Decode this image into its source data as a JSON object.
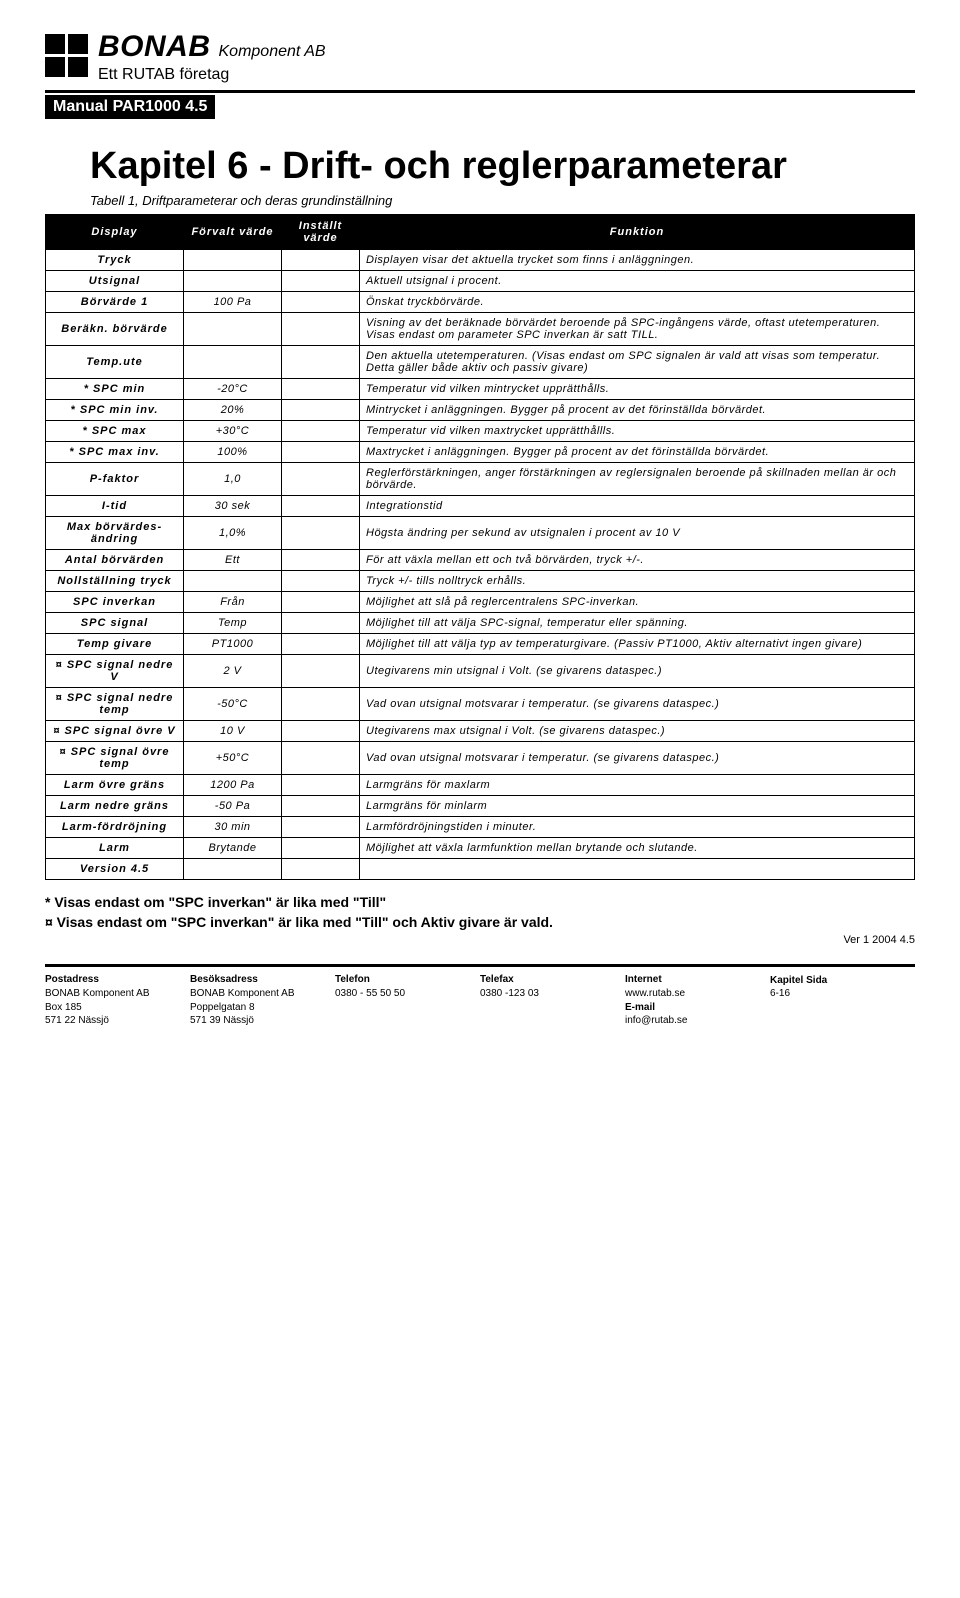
{
  "header": {
    "company_name": "BONAB",
    "company_suffix": "Komponent AB",
    "company_sub": "Ett RUTAB företag",
    "manual_bar": "Manual PAR1000 4.5"
  },
  "chapter": {
    "title": "Kapitel 6 - Drift- och reglerparameterar",
    "caption": "Tabell 1, Driftparameterar och deras grundinställning"
  },
  "table": {
    "headers": [
      "Display",
      "Förvalt värde",
      "Inställt värde",
      "Funktion"
    ],
    "rows": [
      {
        "c1": "Tryck",
        "c2": "",
        "c4": "Displayen visar det aktuella trycket som finns i anläggningen."
      },
      {
        "c1": "Utsignal",
        "c2": "",
        "c4": "Aktuell utsignal i procent."
      },
      {
        "c1": "Börvärde 1",
        "c2": "100 Pa",
        "c4": "Önskat tryckbörvärde."
      },
      {
        "c1": "Beräkn. börvärde",
        "c2": "",
        "c4": "Visning av det beräknade börvärdet beroende på SPC-ingångens värde, oftast utetemperaturen. Visas endast om parameter SPC inverkan är satt TILL."
      },
      {
        "c1": "Temp.ute",
        "c2": "",
        "c4": "Den aktuella utetemperaturen. (Visas endast om SPC signalen är vald att visas som temperatur. Detta gäller både aktiv och passiv givare)"
      },
      {
        "c1": "* SPC min",
        "c2": "-20°C",
        "c4": "Temperatur vid vilken mintrycket upprätthålls."
      },
      {
        "c1": "* SPC min inv.",
        "c2": "20%",
        "c4": "Mintrycket i anläggningen. Bygger på procent av det förinställda börvärdet."
      },
      {
        "c1": "* SPC max",
        "c2": "+30°C",
        "c4": "Temperatur vid vilken maxtrycket upprätthållls."
      },
      {
        "c1": "* SPC max inv.",
        "c2": "100%",
        "c4": "Maxtrycket i anläggningen. Bygger på procent av det förinställda börvärdet."
      },
      {
        "c1": "P-faktor",
        "c2": "1,0",
        "c4": "Reglerförstärkningen, anger förstärkningen av reglersignalen beroende på skillnaden mellan är och börvärde."
      },
      {
        "c1": "I-tid",
        "c2": "30 sek",
        "c4": "Integrationstid"
      },
      {
        "c1": "Max börvärdes-ändring",
        "c2": "1,0%",
        "c4": "Högsta ändring per sekund av utsignalen i procent av 10 V"
      },
      {
        "c1": "Antal börvärden",
        "c2": "Ett",
        "c4": "För att växla mellan ett och två börvärden, tryck +/-."
      },
      {
        "c1": "Nollställning tryck",
        "c2": "",
        "c4": "Tryck +/- tills nolltryck erhålls."
      },
      {
        "c1": "SPC inverkan",
        "c2": "Från",
        "c4": "Möjlighet att slå på reglercentralens SPC-inverkan."
      },
      {
        "c1": "SPC signal",
        "c2": "Temp",
        "c4": "Möjlighet till att välja SPC-signal, temperatur eller spänning."
      },
      {
        "c1": "Temp givare",
        "c2": "PT1000",
        "c4": "Möjlighet till att välja typ av temperaturgivare. (Passiv PT1000, Aktiv alternativt ingen givare)"
      },
      {
        "c1": "¤ SPC signal nedre V",
        "c2": "2 V",
        "c4": "Utegivarens min utsignal i Volt. (se givarens dataspec.)"
      },
      {
        "c1": "¤ SPC signal nedre temp",
        "c2": "-50°C",
        "c4": "Vad ovan utsignal motsvarar i temperatur. (se givarens dataspec.)"
      },
      {
        "c1": "¤ SPC signal övre V",
        "c2": "10 V",
        "c4": "Utegivarens max utsignal i Volt. (se givarens dataspec.)"
      },
      {
        "c1": "¤ SPC signal övre temp",
        "c2": "+50°C",
        "c4": "Vad ovan utsignal motsvarar i temperatur. (se givarens dataspec.)"
      },
      {
        "c1": "Larm övre gräns",
        "c2": "1200 Pa",
        "c4": "Larmgräns för maxlarm"
      },
      {
        "c1": "Larm nedre gräns",
        "c2": "-50 Pa",
        "c4": "Larmgräns för minlarm"
      },
      {
        "c1": "Larm-fördröjning",
        "c2": "30 min",
        "c4": "Larmfördröjningstiden i minuter."
      },
      {
        "c1": "Larm",
        "c2": "Brytande",
        "c4": "Möjlighet att växla larmfunktion mellan brytande och slutande."
      },
      {
        "c1": "Version 4.5",
        "c2": "",
        "c4": ""
      }
    ]
  },
  "footnotes": {
    "line1": "* Visas endast om \"SPC inverkan\" är lika med \"Till\"",
    "line2": "¤ Visas endast om \"SPC inverkan\" är lika med \"Till\" och Aktiv givare är vald.",
    "ver": "Ver 1 2004 4.5"
  },
  "footer": {
    "cols": [
      {
        "h": "Postadress",
        "l1": "BONAB Komponent AB",
        "l2": "Box 185",
        "l3": "571 22 Nässjö"
      },
      {
        "h": "Besöksadress",
        "l1": "BONAB Komponent AB",
        "l2": "Poppelgatan 8",
        "l3": "571 39 Nässjö"
      },
      {
        "h": "Telefon",
        "l1": "0380 - 55 50 50",
        "l2": "",
        "l3": ""
      },
      {
        "h": "Telefax",
        "l1": "0380 -123 03",
        "l2": "",
        "l3": ""
      },
      {
        "h": "Internet",
        "l1": "www.rutab.se",
        "l2": "E-mail",
        "l3": "info@rutab.se"
      },
      {
        "h": "",
        "l1": "",
        "l2": "Kapitel Sida",
        "l3": "6-16"
      }
    ]
  }
}
